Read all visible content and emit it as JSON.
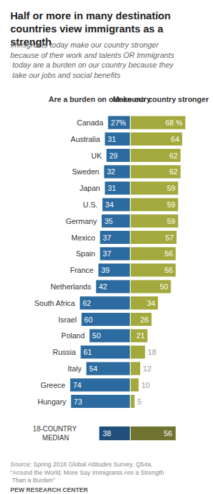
{
  "chart_data": {
    "type": "bar",
    "orientation": "horizontal",
    "title": "Half or more in many destination countries view immigrants as a strength",
    "subtitle": "Immigrants today make our country stronger because of their work and talents OR Immigrants today are a burden on our country because they take our jobs and social benefits",
    "categories": [
      "Canada",
      "Australia",
      "UK",
      "Sweden",
      "Japan",
      "U.S.",
      "Germany",
      "Mexico",
      "Spain",
      "France",
      "Netherlands",
      "South Africa",
      "Israel",
      "Poland",
      "Russia",
      "Italy",
      "Greece",
      "Hungary"
    ],
    "series": [
      {
        "name": "Are a burden on our country",
        "color": "#2c6ba0",
        "values": [
          27,
          31,
          29,
          32,
          31,
          34,
          35,
          37,
          37,
          39,
          42,
          62,
          60,
          50,
          61,
          54,
          74,
          73
        ],
        "value_labels": [
          "27%",
          "31",
          "29",
          "32",
          "31",
          "34",
          "35",
          "37",
          "37",
          "39",
          "42",
          "62",
          "60",
          "50",
          "61",
          "54",
          "74",
          "73"
        ]
      },
      {
        "name": "Make our country stronger",
        "color": "#a4a93d",
        "values": [
          68,
          64,
          62,
          62,
          59,
          59,
          59,
          57,
          56,
          56,
          50,
          34,
          26,
          21,
          18,
          12,
          10,
          5
        ],
        "value_labels": [
          "68 %",
          "64",
          "62",
          "62",
          "59",
          "59",
          "59",
          "57",
          "56",
          "56",
          "50",
          "34",
          "26",
          "21",
          "18",
          "12",
          "10",
          "5"
        ]
      }
    ],
    "median": {
      "label": "18-COUNTRY MEDIAN",
      "values": [
        38,
        56
      ],
      "colors": [
        "#1f4f7a",
        "#6f7430"
      ]
    },
    "xlim": [
      0,
      75
    ],
    "data_labels": true,
    "tick_labels": "y",
    "grid": false,
    "source": "Source: Spring 2018 Global Attitudes Survey. Q54a.",
    "note": "“Around the World, More Say Immigrants Are a Strength Than a Burden”",
    "credit": "PEW RESEARCH CENTER"
  }
}
